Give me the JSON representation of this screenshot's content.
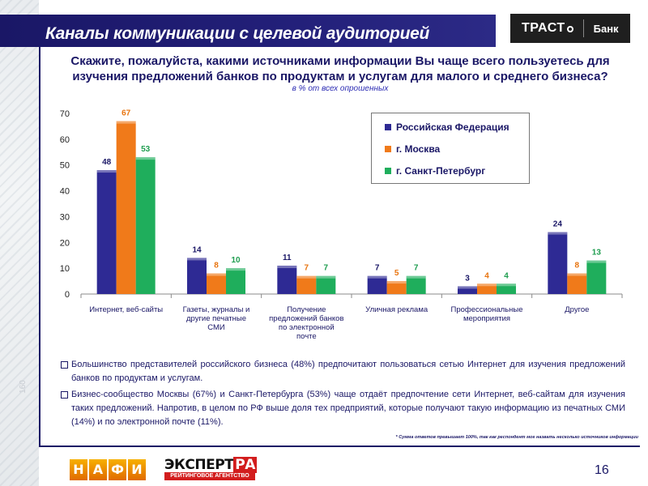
{
  "header": {
    "title": "Каналы коммуникации с целевой аудиторией",
    "logo_main": "ТРАСТ",
    "logo_bank": "Банк"
  },
  "question": "Скажите, пожалуйста, какими источниками информации Вы чаще всего пользуетесь для изучения предложений банков по продуктам и услугам для малого и среднего бизнеса?",
  "subtitle": "в % от всех опрошенных",
  "chart_data": {
    "type": "bar",
    "title": "",
    "xlabel": "",
    "ylabel": "",
    "ylim": [
      0,
      70
    ],
    "yticks": [
      0,
      10,
      20,
      30,
      40,
      50,
      60,
      70
    ],
    "categories": [
      [
        "Интернет, веб-сайты"
      ],
      [
        "Газеты, журналы и",
        "другие печатные",
        "СМИ"
      ],
      [
        "Получение",
        "предложений банков",
        "по электронной",
        "почте"
      ],
      [
        "Уличная реклама"
      ],
      [
        "Профессиональные",
        "мероприятия"
      ],
      [
        "Другое"
      ]
    ],
    "series": [
      {
        "name": "Российская Федерация",
        "color": "#2e2a94",
        "label_color": "#1a1766",
        "values": [
          48,
          14,
          11,
          7,
          3,
          24
        ]
      },
      {
        "name": "г. Москва",
        "color": "#f07a1a",
        "label_color": "#e8740f",
        "values": [
          67,
          8,
          7,
          5,
          4,
          8
        ]
      },
      {
        "name": "г. Санкт-Петербург",
        "color": "#1fae5c",
        "label_color": "#1e9d4f",
        "values": [
          53,
          10,
          7,
          7,
          4,
          13
        ]
      }
    ],
    "legend_position": "top-right",
    "grid": false
  },
  "bullets": [
    "Большинство представителей российского бизнеса (48%) предпочитают пользоваться сетью Интернет для изучения предложений банков по продуктам и услугам.",
    "Бизнес-сообщество Москвы (67%) и Санкт-Петербурга (53%) чаще отдаёт предпочтение сети Интернет, веб-сайтам для изучения таких предложений. Напротив, в целом по РФ выше доля тех предприятий, которые получают такую информацию из печатных СМИ (14%) и по электронной почте (11%)."
  ],
  "footnote": "* Сумма ответов превышает 100%, так как респондент мог назвать несколько источников информации",
  "side_number": "160",
  "footer": {
    "nafi_letters": [
      "Н",
      "А",
      "Ф",
      "И"
    ],
    "expert_top": "ЭКСПЕРТ",
    "expert_ra": "РА",
    "expert_bottom": "РЕЙТИНГОВОЕ АГЕНТСТВО",
    "page_number": "16"
  }
}
